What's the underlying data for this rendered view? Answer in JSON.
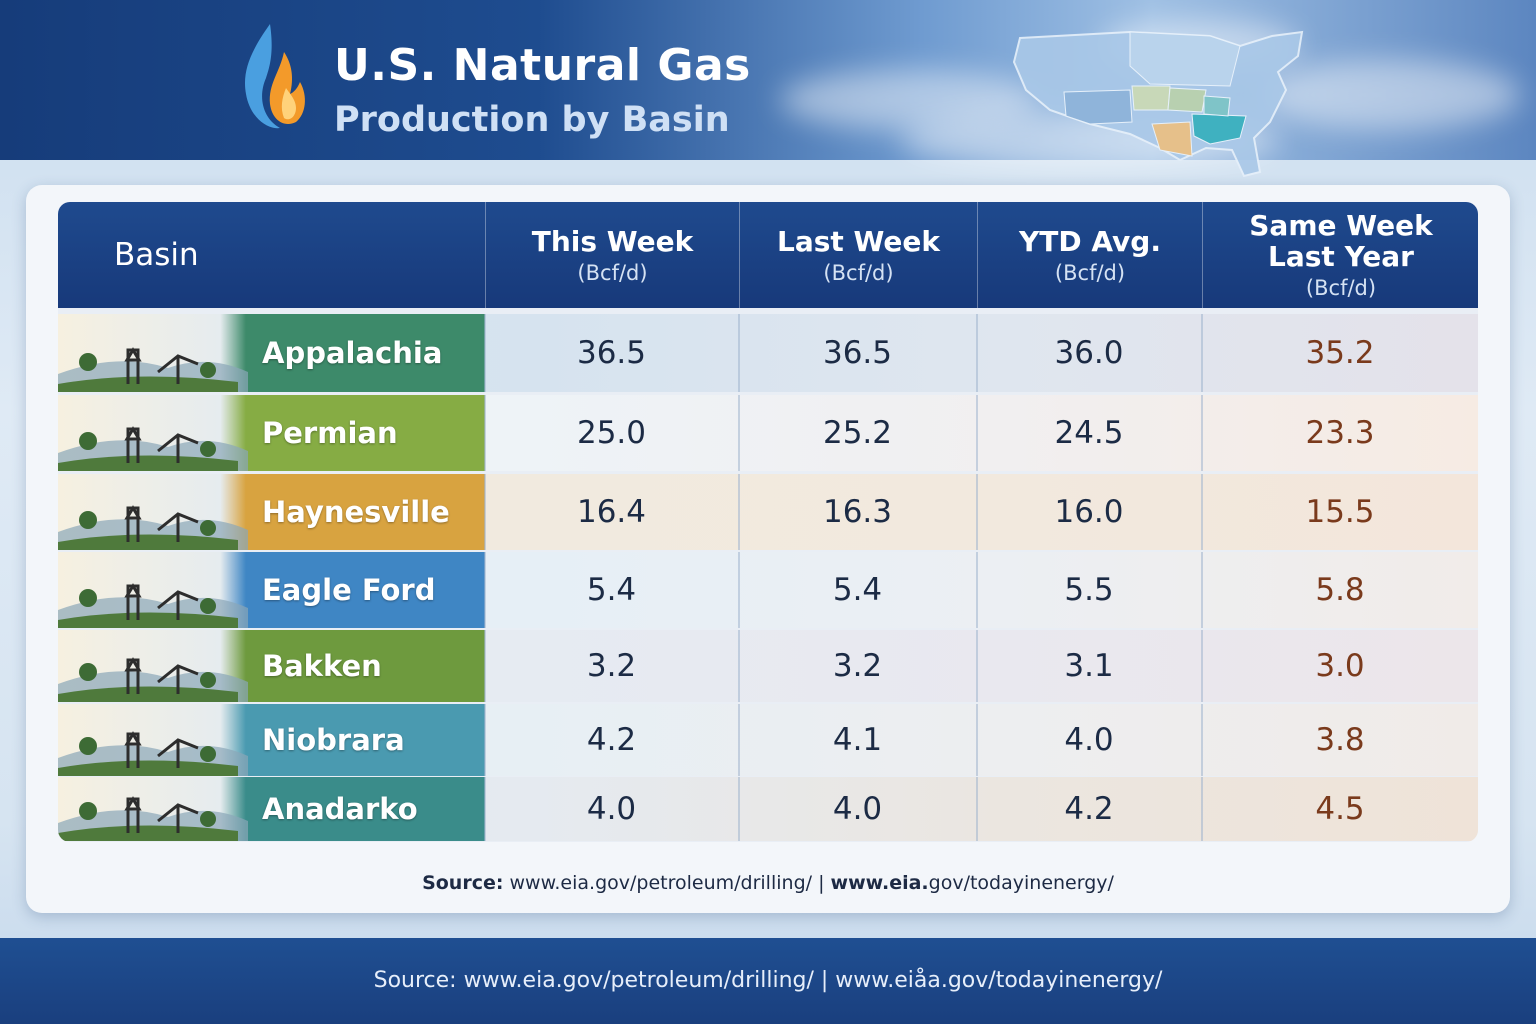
{
  "header": {
    "title": "U.S. Natural Gas",
    "subtitle": "Production by Basin"
  },
  "colors": {
    "header_bg": "#1e4c8f",
    "appalachia": "#3d8a6a",
    "permian": "#86ac44",
    "haynesville": "#d8a340",
    "eagle_ford": "#3f86c4",
    "bakken": "#6e9a3e",
    "niobrara": "#4a9ab0",
    "anadarko": "#3a8c8a",
    "last_year_text": "#7a3a1c"
  },
  "chart_data": {
    "type": "table",
    "columns": [
      {
        "label": "Basin",
        "unit": ""
      },
      {
        "label": "This Week",
        "unit": "(Bcf/d)"
      },
      {
        "label": "Last Week",
        "unit": "(Bcf/d)"
      },
      {
        "label": "YTD Avg.",
        "unit": "(Bcf/d)"
      },
      {
        "label": "Same Week Last Year",
        "unit": "(Bcf/d)"
      }
    ],
    "rows": [
      {
        "basin": "Appalachia",
        "values": [
          "36.5",
          "36.5",
          "36.0",
          "35.2"
        ]
      },
      {
        "basin": "Permian",
        "values": [
          "25.0",
          "25.2",
          "24.5",
          "23.3"
        ]
      },
      {
        "basin": "Haynesville",
        "values": [
          "16.4",
          "16.3",
          "16.0",
          "15.5"
        ]
      },
      {
        "basin": "Eagle Ford",
        "values": [
          "5.4",
          "5.4",
          "5.5",
          "5.8"
        ]
      },
      {
        "basin": "Bakken",
        "values": [
          "3.2",
          "3.2",
          "3.1",
          "3.0"
        ]
      },
      {
        "basin": "Niobrara",
        "values": [
          "4.2",
          "4.1",
          "4.0",
          "3.8"
        ]
      },
      {
        "basin": "Anadarko",
        "values": [
          "4.0",
          "4.0",
          "4.2",
          "4.5"
        ]
      }
    ]
  },
  "source_panel": {
    "label": "Source:",
    "link1": "www.eia.gov/petroleum/drilling/",
    "divider": "|",
    "link2_bold": "www.eia.",
    "link2_rest": "gov/todayinenergy/"
  },
  "footer": {
    "source": "Source: www.eia.gov/petroleum/drilling/  | www.eiåa.gov/todayinenergy/"
  }
}
